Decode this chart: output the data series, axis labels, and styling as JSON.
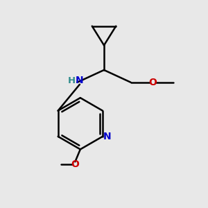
{
  "bg_color": "#e8e8e8",
  "bond_color": "#000000",
  "N_color": "#0000cd",
  "O_color": "#cc0000",
  "H_color": "#2e8b8b",
  "line_width": 1.8,
  "figsize": [
    3.0,
    3.0
  ],
  "dpi": 100,
  "xlim": [
    0,
    10
  ],
  "ylim": [
    0,
    10
  ]
}
